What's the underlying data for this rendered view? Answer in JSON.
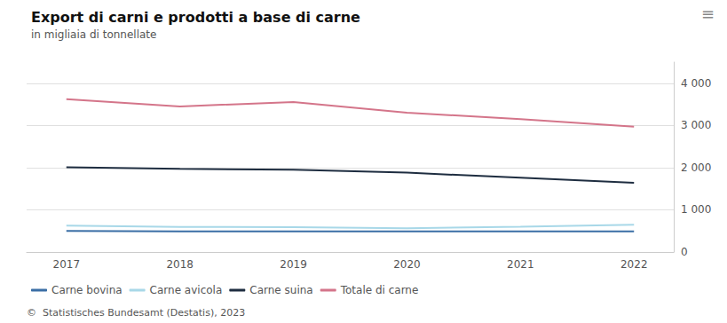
{
  "chart_data": {
    "type": "line",
    "title": "Export di carni e prodotti a base di carne",
    "subtitle": "in migliaia di tonnellate",
    "source": "©  Statistisches Bundesamt (Destatis), 2023",
    "annotations": [
      "≡"
    ],
    "x": [
      2017,
      2018,
      2019,
      2020,
      2021,
      2022
    ],
    "series": [
      {
        "name": "Carne bovina",
        "color": "#3a6ea5",
        "values": [
          500,
          490,
          490,
          490,
          490,
          490
        ]
      },
      {
        "name": "Carne avicola",
        "color": "#a8d8e8",
        "values": [
          625,
          595,
          590,
          565,
          600,
          645
        ]
      },
      {
        "name": "Carne suina",
        "color": "#1e2d40",
        "values": [
          2010,
          1970,
          1950,
          1880,
          1760,
          1640
        ]
      },
      {
        "name": "Totale di carne",
        "color": "#d4758a",
        "values": [
          3620,
          3450,
          3555,
          3300,
          3150,
          2970
        ]
      }
    ],
    "xlim": [
      2016.65,
      2022.35
    ],
    "xticks": [
      2017,
      2018,
      2019,
      2020,
      2021,
      2022
    ],
    "ylim": [
      0,
      4500
    ],
    "yticks": [
      0,
      {
        "value": 1000,
        "label": "1 000"
      },
      {
        "value": 2000,
        "label": "2 000"
      },
      {
        "value": 3000,
        "label": "3 000"
      },
      {
        "value": 4000,
        "label": "4 000"
      }
    ],
    "grid": true,
    "legend": "bottom"
  }
}
